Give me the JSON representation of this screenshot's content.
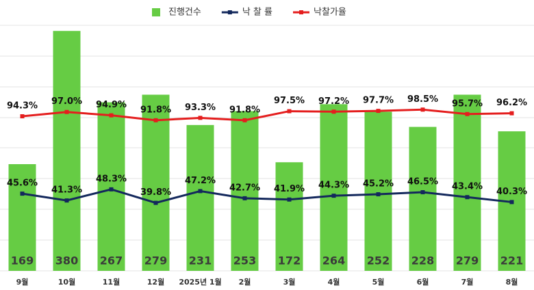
{
  "chart_data": {
    "type": "bar",
    "categories": [
      "9월",
      "10월",
      "11월",
      "12월",
      "2025년 1월",
      "2월",
      "3월",
      "4월",
      "5월",
      "6월",
      "7월",
      "8월"
    ],
    "ylim": [
      0,
      390
    ],
    "y2lim": [
      -3,
      152
    ],
    "series": [
      {
        "name": "진행건수",
        "type": "bar",
        "color": "#66cc44",
        "values": [
          169,
          380,
          267,
          279,
          231,
          253,
          172,
          264,
          252,
          228,
          279,
          221
        ]
      },
      {
        "name": "낙 찰 률",
        "type": "line",
        "axis": "y2",
        "color": "#13285c",
        "values": [
          45.6,
          41.3,
          48.3,
          39.8,
          47.2,
          42.7,
          41.9,
          44.3,
          45.2,
          46.5,
          43.4,
          40.3
        ],
        "value_labels": [
          "45.6%",
          "41.3%",
          "48.3%",
          "39.8%",
          "47.2%",
          "42.7%",
          "41.9%",
          "44.3%",
          "45.2%",
          "46.5%",
          "43.4%",
          "40.3%"
        ]
      },
      {
        "name": "낙찰가율",
        "type": "line",
        "axis": "y2",
        "color": "#e41e1e",
        "values": [
          94.3,
          97.0,
          94.9,
          91.8,
          93.3,
          91.8,
          97.5,
          97.2,
          97.7,
          98.5,
          95.7,
          96.2
        ],
        "value_labels": [
          "94.3%",
          "97.0%",
          "94.9%",
          "91.8%",
          "93.3%",
          "91.8%",
          "97.5%",
          "97.2%",
          "97.7%",
          "98.5%",
          "95.7%",
          "96.2%"
        ]
      }
    ]
  }
}
